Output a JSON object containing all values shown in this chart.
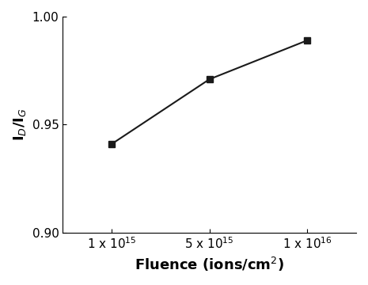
{
  "x_values": [
    1,
    2,
    3
  ],
  "y_values": [
    0.941,
    0.971,
    0.989
  ],
  "x_tick_positions": [
    1,
    2,
    3
  ],
  "x_tick_labels": [
    "1 x 10$^{15}$",
    "5 x 10$^{15}$",
    "1 x 10$^{16}$"
  ],
  "ylabel": "I$_D$/I$_G$",
  "xlabel": "Fluence (ions/cm$^2$)",
  "ylim": [
    0.9,
    1.0
  ],
  "yticks": [
    0.9,
    0.95,
    1.0
  ],
  "xlim": [
    0.5,
    3.5
  ],
  "line_color": "#1a1a1a",
  "marker": "s",
  "marker_size": 6,
  "marker_color": "#1a1a1a",
  "line_width": 1.5,
  "background_color": "#ffffff",
  "tick_fontsize": 11,
  "label_fontsize": 13
}
